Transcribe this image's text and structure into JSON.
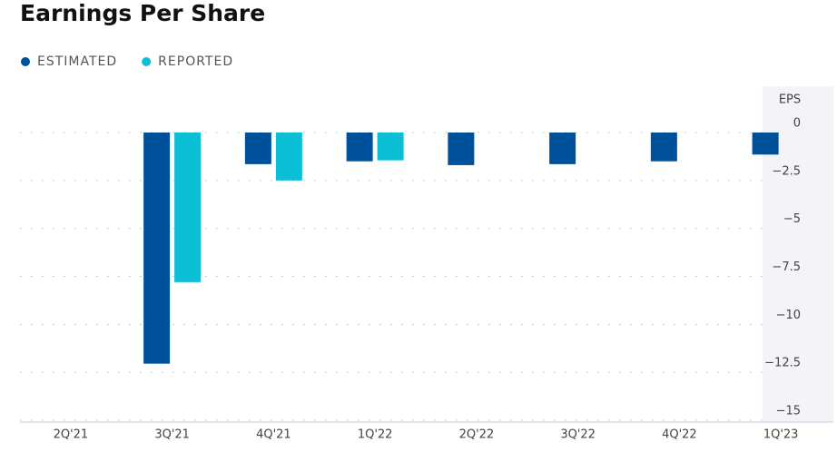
{
  "chart_data": {
    "type": "bar",
    "title": "Earnings Per Share",
    "y_axis_label": "EPS",
    "categories": [
      "2Q'21",
      "3Q'21",
      "4Q'21",
      "1Q'22",
      "2Q'22",
      "3Q'22",
      "4Q'22",
      "1Q'23"
    ],
    "series": [
      {
        "name": "ESTIMATED",
        "color": "#00519c",
        "values": [
          null,
          -12.05,
          -1.65,
          -1.5,
          -1.7,
          -1.65,
          -1.5,
          -1.15
        ]
      },
      {
        "name": "REPORTED",
        "color": "#0bbfd6",
        "values": [
          null,
          -7.8,
          -2.5,
          -1.45,
          null,
          null,
          null,
          null
        ]
      }
    ],
    "ylim": [
      0,
      -15
    ],
    "yticks": [
      0,
      {
        "value": -2.5,
        "label": "−2.5"
      },
      {
        "value": -5,
        "label": "−5"
      },
      {
        "value": -7.5,
        "label": "−7.5"
      },
      {
        "value": -10,
        "label": "−10"
      },
      {
        "value": -12.5,
        "label": "−12.5"
      },
      {
        "value": -15,
        "label": "−15"
      }
    ],
    "grid": true,
    "legend": "top-left"
  }
}
